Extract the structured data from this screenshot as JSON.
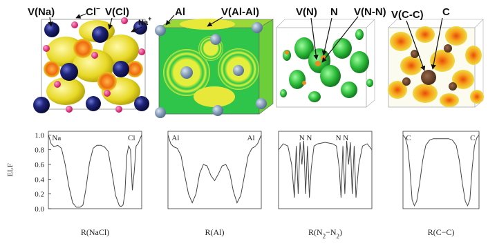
{
  "structures": [
    {
      "id": "nacl",
      "labels": [
        {
          "text": "V(Na)"
        },
        {
          "text": "Cl",
          "sup": "−"
        },
        {
          "text": "V(Cl)"
        },
        {
          "text": "Na",
          "sup": "+"
        }
      ]
    },
    {
      "id": "al",
      "labels": [
        {
          "text": "Al"
        },
        {
          "text": "V(Al-Al)"
        }
      ]
    },
    {
      "id": "n2",
      "labels": [
        {
          "text": "V(N)"
        },
        {
          "text": "N"
        },
        {
          "text": "V(N-N)"
        }
      ]
    },
    {
      "id": "c",
      "labels": [
        {
          "text": "V(C-C)"
        },
        {
          "text": "C"
        }
      ]
    }
  ],
  "chart_data": [
    {
      "type": "line",
      "ylabel": "ELF",
      "ylim": [
        0,
        1.05
      ],
      "yticks": [
        "1.0",
        "0.8",
        "0.6",
        "0.4",
        "0.2",
        "0.0"
      ],
      "xlabel": {
        "text": "R(NaCl)"
      },
      "atom_labels": [
        "Na",
        "Cl"
      ],
      "x": [
        0,
        0.03,
        0.06,
        0.1,
        0.14,
        0.18,
        0.22,
        0.26,
        0.3,
        0.34,
        0.37,
        0.4,
        0.44,
        0.48,
        0.52,
        0.56,
        0.6,
        0.64,
        0.68,
        0.72,
        0.76,
        0.78,
        0.8,
        0.82,
        0.84,
        0.86,
        0.88,
        0.9,
        0.92,
        0.94,
        0.96,
        1.0
      ],
      "y": [
        1.0,
        0.88,
        0.84,
        0.86,
        0.82,
        0.6,
        0.3,
        0.08,
        0.02,
        0.02,
        0.05,
        0.25,
        0.62,
        0.82,
        0.86,
        0.86,
        0.84,
        0.78,
        0.5,
        0.18,
        0.04,
        0.03,
        0.05,
        0.2,
        0.72,
        0.85,
        0.8,
        0.25,
        0.5,
        0.85,
        0.88,
        1.0
      ]
    },
    {
      "type": "line",
      "ylim": [
        0,
        1.05
      ],
      "xlabel": {
        "text": "R(Al)"
      },
      "atom_labels": [
        "Al",
        "Al"
      ],
      "x": [
        0,
        0.03,
        0.06,
        0.1,
        0.14,
        0.18,
        0.22,
        0.26,
        0.3,
        0.34,
        0.38,
        0.42,
        0.46,
        0.5,
        0.54,
        0.58,
        0.62,
        0.66,
        0.7,
        0.74,
        0.78,
        0.82,
        0.86,
        0.9,
        0.93,
        0.96,
        1.0
      ],
      "y": [
        1.0,
        0.88,
        0.84,
        0.82,
        0.72,
        0.45,
        0.2,
        0.08,
        0.2,
        0.48,
        0.6,
        0.58,
        0.45,
        0.38,
        0.47,
        0.58,
        0.6,
        0.5,
        0.24,
        0.08,
        0.18,
        0.45,
        0.72,
        0.82,
        0.84,
        0.88,
        1.0
      ]
    },
    {
      "type": "line",
      "ylim": [
        0,
        1.05
      ],
      "xlabel": {
        "text": "R(N",
        "sub1": "2",
        "mid": "−N",
        "sub2": "2",
        "end": ")"
      },
      "atom_labels": [
        "N N",
        "N N"
      ],
      "x": [
        0,
        0.05,
        0.1,
        0.14,
        0.17,
        0.19,
        0.21,
        0.23,
        0.25,
        0.27,
        0.29,
        0.31,
        0.33,
        0.35,
        0.38,
        0.42,
        0.5,
        0.58,
        0.62,
        0.65,
        0.67,
        0.69,
        0.71,
        0.73,
        0.75,
        0.77,
        0.79,
        0.81,
        0.83,
        0.86,
        0.9,
        0.95,
        1.0
      ],
      "y": [
        0.8,
        0.88,
        0.85,
        0.6,
        0.15,
        0.85,
        0.2,
        0.9,
        0.6,
        0.92,
        0.2,
        0.85,
        0.15,
        0.55,
        0.85,
        0.88,
        0.9,
        0.88,
        0.85,
        0.55,
        0.15,
        0.85,
        0.2,
        0.92,
        0.6,
        0.9,
        0.2,
        0.85,
        0.15,
        0.6,
        0.85,
        0.88,
        0.8
      ]
    },
    {
      "type": "line",
      "ylim": [
        0,
        1.05
      ],
      "xlabel": {
        "text": "R(C−C)"
      },
      "atom_labels": [
        "C",
        "C"
      ],
      "x": [
        0,
        0.03,
        0.06,
        0.09,
        0.12,
        0.15,
        0.18,
        0.22,
        0.26,
        0.3,
        0.35,
        0.4,
        0.5,
        0.6,
        0.65,
        0.7,
        0.74,
        0.78,
        0.82,
        0.85,
        0.88,
        0.91,
        0.94,
        0.97,
        1.0
      ],
      "y": [
        1.0,
        0.96,
        0.85,
        0.55,
        0.12,
        0.04,
        0.1,
        0.35,
        0.66,
        0.86,
        0.93,
        0.95,
        0.95,
        0.95,
        0.93,
        0.86,
        0.66,
        0.35,
        0.1,
        0.04,
        0.12,
        0.55,
        0.85,
        0.96,
        1.0
      ]
    }
  ]
}
